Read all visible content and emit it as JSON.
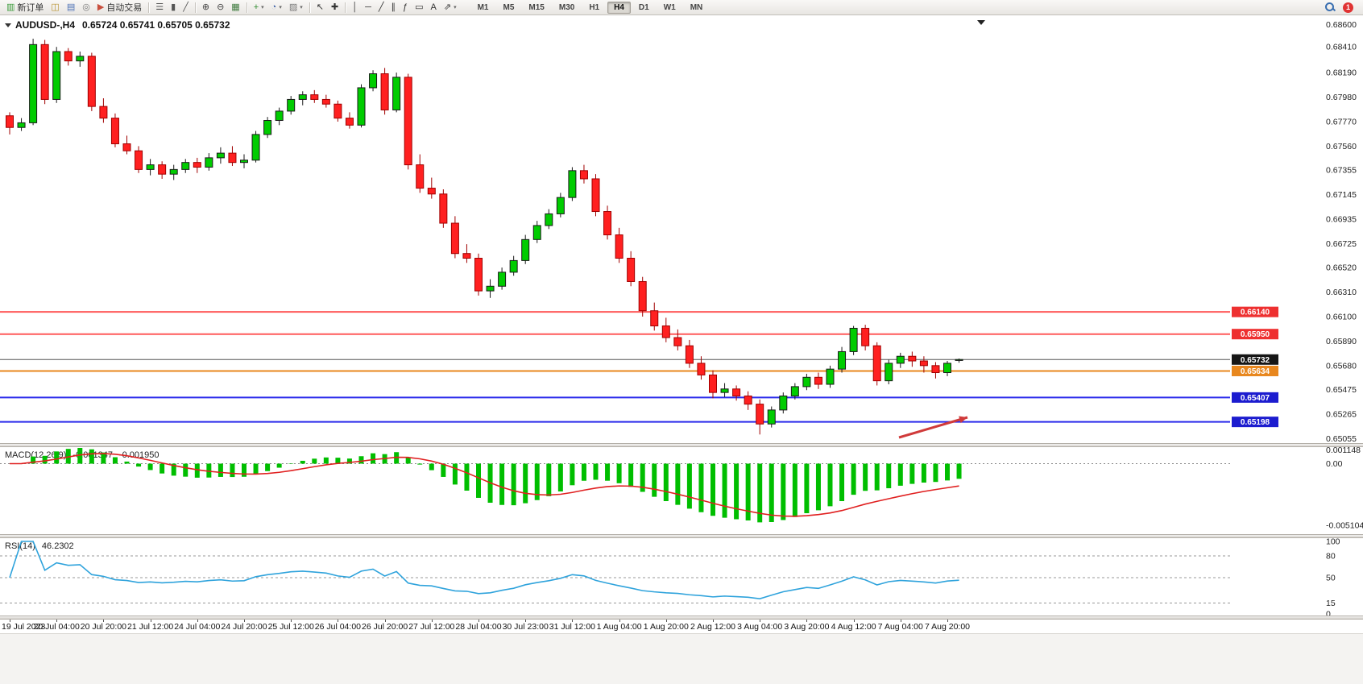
{
  "toolbar": {
    "items": [
      {
        "name": "new-order-button",
        "glyph": "▥",
        "color": "#3a9b3a",
        "label": "新订单"
      },
      {
        "name": "charts-button",
        "glyph": "◫",
        "color": "#b8922e"
      },
      {
        "name": "market-watch-button",
        "glyph": "▤",
        "color": "#4a6fb5"
      },
      {
        "name": "navigator-button",
        "glyph": "◎",
        "color": "#7a7a7a"
      },
      {
        "name": "autotrade-button",
        "glyph": "▶",
        "color": "#c94f3e",
        "label": "自动交易"
      },
      {
        "sep": true
      },
      {
        "name": "bar-chart-button",
        "glyph": "☰",
        "color": "#555555"
      },
      {
        "name": "candlestick-button",
        "glyph": "▮",
        "color": "#555555"
      },
      {
        "name": "line-chart-button",
        "glyph": "╱",
        "color": "#555555"
      },
      {
        "sep": true
      },
      {
        "name": "zoom-in-button",
        "glyph": "⊕",
        "color": "#444444"
      },
      {
        "name": "zoom-out-button",
        "glyph": "⊖",
        "color": "#444444"
      },
      {
        "name": "tile-windows-button",
        "glyph": "▦",
        "color": "#3e7a3e"
      },
      {
        "sep": true
      },
      {
        "name": "indicators-button",
        "glyph": "+",
        "color": "#2e8b2e",
        "caret": true
      },
      {
        "name": "periods-button",
        "glyph": "◔",
        "color": "#4466aa",
        "caret": true
      },
      {
        "name": "templates-button",
        "glyph": "▨",
        "color": "#777777",
        "caret": true
      },
      {
        "sep": true
      },
      {
        "name": "cursor-button",
        "glyph": "↖",
        "color": "#333333"
      },
      {
        "name": "crosshair-button",
        "glyph": "✚",
        "color": "#333333"
      },
      {
        "sep": true
      },
      {
        "name": "vertical-line-button",
        "glyph": "│",
        "color": "#333333"
      },
      {
        "name": "horizontal-line-button",
        "glyph": "─",
        "color": "#333333"
      },
      {
        "name": "trendline-button",
        "glyph": "╱",
        "color": "#333333"
      },
      {
        "name": "channel-button",
        "glyph": "∥",
        "color": "#333333"
      },
      {
        "name": "fibonacci-button",
        "glyph": "ƒ",
        "color": "#333333"
      },
      {
        "name": "shapes-button",
        "glyph": "▭",
        "color": "#333333"
      },
      {
        "name": "text-button",
        "glyph": "A",
        "color": "#333333"
      },
      {
        "name": "arrow-tools-button",
        "glyph": "⇗",
        "color": "#333333",
        "caret": true
      }
    ],
    "timeframes": [
      "M1",
      "M5",
      "M15",
      "M30",
      "H1",
      "H4",
      "D1",
      "W1",
      "MN"
    ],
    "active_timeframe": "H4",
    "notification_count": "1"
  },
  "chart": {
    "symbol_period": "AUDUSD-,H4",
    "ohlc_text": "0.65724 0.65741 0.65705 0.65732",
    "hlines": [
      {
        "price": 0.6614,
        "label": "0.66140",
        "line_color": "#ff5a5a",
        "tag_color": "#ee3030",
        "thick": 2
      },
      {
        "price": 0.6595,
        "label": "0.65950",
        "line_color": "#ff5a5a",
        "tag_color": "#ee3030",
        "thick": 2
      },
      {
        "price": 0.65732,
        "label": "0.65732",
        "line_color": "#555555",
        "tag_color": "#161616",
        "thick": 1
      },
      {
        "price": 0.65634,
        "label": "0.65634",
        "line_color": "#e8871e",
        "tag_color": "#e8871e",
        "thick": 2
      },
      {
        "price": 0.65407,
        "label": "0.65407",
        "line_color": "#2b2beb",
        "tag_color": "#1c1ccf",
        "thick": 2
      },
      {
        "price": 0.65198,
        "label": "0.65198",
        "line_color": "#2b2beb",
        "tag_color": "#1c1ccf",
        "thick": 2
      }
    ],
    "arrow": {
      "from": [
        1116,
        524
      ],
      "to": [
        1201,
        499
      ],
      "color": "#d03a3a"
    },
    "colors": {
      "up": "#00cc00",
      "up_border": "#1a1a1a",
      "down": "#ff2020",
      "down_border": "#a00000",
      "bg": "#ffffff"
    }
  },
  "chart_data": {
    "type": "candlestick",
    "symbol": "AUDUSD",
    "timeframe": "H4",
    "current": {
      "open": 0.65724,
      "high": 0.65741,
      "low": 0.65705,
      "close": 0.65732
    },
    "y_range": [
      0.6503,
      0.6866
    ],
    "y_axis_labels": [
      "0.68600",
      "0.68410",
      "0.68190",
      "0.67980",
      "0.67770",
      "0.67560",
      "0.67355",
      "0.67145",
      "0.66935",
      "0.66725",
      "0.66520",
      "0.66310",
      "0.66100",
      "0.65890",
      "0.65680",
      "0.65475",
      "0.65265",
      "0.65055"
    ],
    "time_labels": [
      "19 Jul 2023",
      "20 Jul 04:00",
      "20 Jul 20:00",
      "21 Jul 12:00",
      "24 Jul 04:00",
      "24 Jul 20:00",
      "25 Jul 12:00",
      "26 Jul 04:00",
      "26 Jul 20:00",
      "27 Jul 12:00",
      "28 Jul 04:00",
      "30 Jul 23:00",
      "31 Jul 12:00",
      "1 Aug 04:00",
      "1 Aug 20:00",
      "2 Aug 12:00",
      "3 Aug 04:00",
      "3 Aug 20:00",
      "4 Aug 12:00",
      "7 Aug 04:00",
      "7 Aug 20:00"
    ],
    "horizontal_levels": [
      0.6614,
      0.6595,
      0.65732,
      0.65634,
      0.65407,
      0.65198
    ],
    "candles": [
      [
        0.6782,
        0.6785,
        0.6766,
        0.6772
      ],
      [
        0.6772,
        0.678,
        0.6769,
        0.6776
      ],
      [
        0.6776,
        0.6848,
        0.6774,
        0.6843
      ],
      [
        0.6843,
        0.6847,
        0.6792,
        0.6796
      ],
      [
        0.6796,
        0.6841,
        0.6793,
        0.6837
      ],
      [
        0.6837,
        0.684,
        0.6825,
        0.6829
      ],
      [
        0.6829,
        0.6837,
        0.6824,
        0.6833
      ],
      [
        0.6833,
        0.6836,
        0.6786,
        0.679
      ],
      [
        0.679,
        0.6797,
        0.6776,
        0.678
      ],
      [
        0.678,
        0.6784,
        0.6755,
        0.6758
      ],
      [
        0.6758,
        0.6765,
        0.6749,
        0.6752
      ],
      [
        0.6752,
        0.6756,
        0.6733,
        0.6736
      ],
      [
        0.6736,
        0.6745,
        0.6731,
        0.674
      ],
      [
        0.674,
        0.6743,
        0.6728,
        0.6732
      ],
      [
        0.6732,
        0.674,
        0.6727,
        0.6736
      ],
      [
        0.6736,
        0.6745,
        0.6733,
        0.6742
      ],
      [
        0.6742,
        0.6746,
        0.6733,
        0.6738
      ],
      [
        0.6738,
        0.675,
        0.6735,
        0.6746
      ],
      [
        0.6746,
        0.6755,
        0.6741,
        0.675
      ],
      [
        0.675,
        0.6756,
        0.6739,
        0.6742
      ],
      [
        0.6742,
        0.6749,
        0.6737,
        0.6744
      ],
      [
        0.6744,
        0.6769,
        0.6742,
        0.6766
      ],
      [
        0.6766,
        0.6781,
        0.6763,
        0.6778
      ],
      [
        0.6778,
        0.6789,
        0.6774,
        0.6786
      ],
      [
        0.6786,
        0.6799,
        0.6783,
        0.6796
      ],
      [
        0.6796,
        0.6803,
        0.6791,
        0.68
      ],
      [
        0.68,
        0.6804,
        0.6793,
        0.6796
      ],
      [
        0.6796,
        0.68,
        0.6789,
        0.6792
      ],
      [
        0.6792,
        0.6795,
        0.6777,
        0.678
      ],
      [
        0.678,
        0.6785,
        0.6771,
        0.6774
      ],
      [
        0.6774,
        0.6809,
        0.6772,
        0.6806
      ],
      [
        0.6806,
        0.6821,
        0.6803,
        0.6818
      ],
      [
        0.6818,
        0.6823,
        0.6783,
        0.6787
      ],
      [
        0.6787,
        0.6819,
        0.6785,
        0.6815
      ],
      [
        0.6815,
        0.6818,
        0.6736,
        0.674
      ],
      [
        0.674,
        0.6749,
        0.6716,
        0.672
      ],
      [
        0.672,
        0.6729,
        0.6711,
        0.6715
      ],
      [
        0.6715,
        0.6719,
        0.6686,
        0.669
      ],
      [
        0.669,
        0.6696,
        0.666,
        0.6664
      ],
      [
        0.6664,
        0.6672,
        0.6656,
        0.666
      ],
      [
        0.666,
        0.6664,
        0.6628,
        0.6632
      ],
      [
        0.6632,
        0.6642,
        0.6626,
        0.6636
      ],
      [
        0.6636,
        0.6652,
        0.6633,
        0.6648
      ],
      [
        0.6648,
        0.6662,
        0.6645,
        0.6658
      ],
      [
        0.6658,
        0.668,
        0.6655,
        0.6676
      ],
      [
        0.6676,
        0.6692,
        0.6673,
        0.6688
      ],
      [
        0.6688,
        0.6702,
        0.6685,
        0.6698
      ],
      [
        0.6698,
        0.6716,
        0.6695,
        0.6712
      ],
      [
        0.6712,
        0.6738,
        0.6709,
        0.6735
      ],
      [
        0.6735,
        0.674,
        0.6724,
        0.6728
      ],
      [
        0.6728,
        0.6732,
        0.6696,
        0.67
      ],
      [
        0.67,
        0.6705,
        0.6676,
        0.668
      ],
      [
        0.668,
        0.6686,
        0.6656,
        0.666
      ],
      [
        0.666,
        0.6666,
        0.6636,
        0.664
      ],
      [
        0.664,
        0.6644,
        0.661,
        0.6615
      ],
      [
        0.6615,
        0.6622,
        0.6598,
        0.6602
      ],
      [
        0.6602,
        0.6609,
        0.6588,
        0.6592
      ],
      [
        0.6592,
        0.6599,
        0.6581,
        0.6585
      ],
      [
        0.6585,
        0.659,
        0.6566,
        0.657
      ],
      [
        0.657,
        0.6576,
        0.6556,
        0.656
      ],
      [
        0.656,
        0.6564,
        0.654,
        0.6545
      ],
      [
        0.6545,
        0.6553,
        0.6541,
        0.6548
      ],
      [
        0.6548,
        0.6551,
        0.6538,
        0.6542
      ],
      [
        0.6542,
        0.6546,
        0.653,
        0.6535
      ],
      [
        0.6535,
        0.6539,
        0.6509,
        0.6518
      ],
      [
        0.6518,
        0.6533,
        0.6515,
        0.653
      ],
      [
        0.653,
        0.6545,
        0.6527,
        0.6542
      ],
      [
        0.6542,
        0.6553,
        0.6539,
        0.655
      ],
      [
        0.655,
        0.6561,
        0.6547,
        0.6558
      ],
      [
        0.6558,
        0.6562,
        0.6548,
        0.6552
      ],
      [
        0.6552,
        0.6568,
        0.6549,
        0.6565
      ],
      [
        0.6565,
        0.6584,
        0.6562,
        0.658
      ],
      [
        0.658,
        0.6602,
        0.6577,
        0.66
      ],
      [
        0.66,
        0.6603,
        0.6581,
        0.6585
      ],
      [
        0.6585,
        0.6588,
        0.6551,
        0.6555
      ],
      [
        0.6555,
        0.6573,
        0.6552,
        0.657
      ],
      [
        0.657,
        0.6579,
        0.6566,
        0.6576
      ],
      [
        0.6576,
        0.658,
        0.6567,
        0.6572
      ],
      [
        0.6572,
        0.6576,
        0.6562,
        0.6568
      ],
      [
        0.6568,
        0.6571,
        0.6557,
        0.6562
      ],
      [
        0.6562,
        0.6572,
        0.6559,
        0.657
      ],
      [
        0.65724,
        0.65741,
        0.65705,
        0.65732
      ]
    ]
  },
  "macd": {
    "name": "MACD(12,26,9)",
    "value1": "-0.001347",
    "value2": "-0.001950",
    "axis_labels": [
      "0.001148",
      "0.00",
      "-0.005104"
    ],
    "range": [
      -0.0057,
      0.0013
    ],
    "histogram_color": "#00be00",
    "signal_color": "#e02020"
  },
  "rsi": {
    "name": "RSI(14)",
    "value": "46.2302",
    "period": 14,
    "axis_labels": [
      "100",
      "80",
      "50",
      "15",
      "0"
    ],
    "levels": [
      80,
      50,
      15
    ],
    "line_color": "#2fa3dc"
  }
}
